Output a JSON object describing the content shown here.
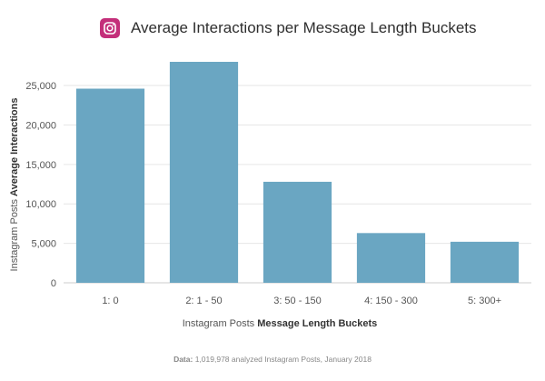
{
  "header": {
    "title": "Average Interactions per Message Length Buckets",
    "icon": "instagram-icon"
  },
  "source": {
    "prefix": "Data:",
    "text": "1,019,978 analyzed Instagram Posts, January 2018"
  },
  "chart_data": {
    "type": "bar",
    "title": "Average Interactions per Message Length Buckets",
    "ylabel_regular": "Instagram Posts",
    "ylabel_bold": "Average Interactions",
    "xlabel_regular": "Instagram Posts",
    "xlabel_bold": "Message Length Buckets",
    "categories": [
      "1: 0",
      "2: 1 - 50",
      "3: 50 - 150",
      "4: 150 - 300",
      "5: 300+"
    ],
    "values": [
      24600,
      28000,
      12800,
      6300,
      5200
    ],
    "ylim": [
      0,
      28000
    ],
    "yticks": [
      0,
      5000,
      10000,
      15000,
      20000,
      25000
    ],
    "ytick_labels": [
      "0",
      "5,000",
      "10,000",
      "15,000",
      "20,000",
      "25,000"
    ],
    "grid": true,
    "bar_color": "#6aa6c2"
  }
}
